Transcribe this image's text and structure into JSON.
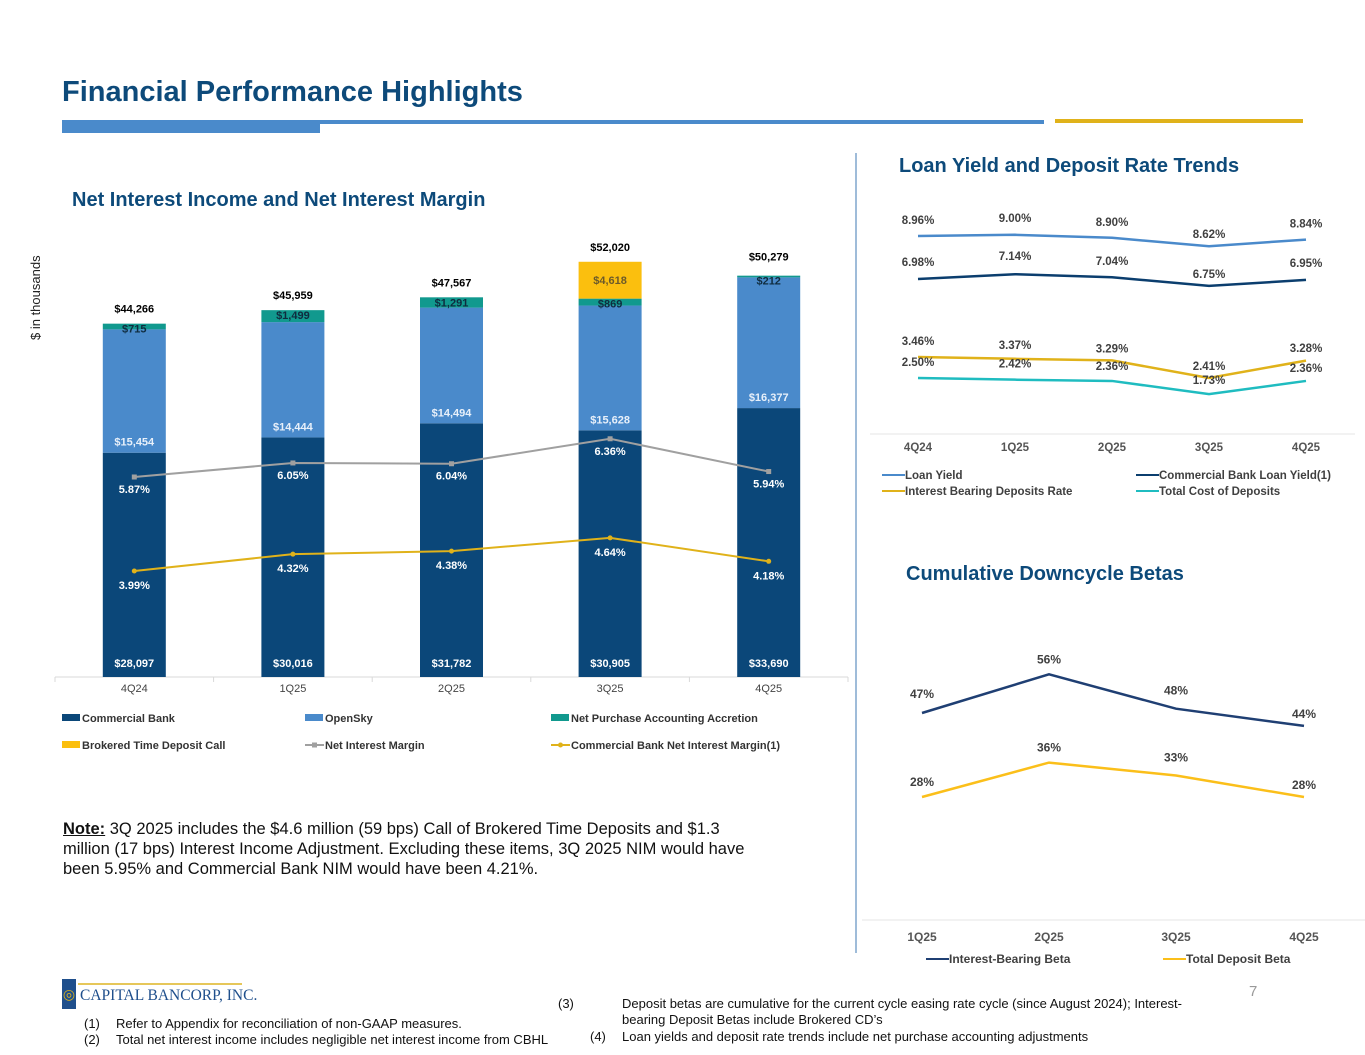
{
  "page": {
    "title": "Financial Performance Highlights",
    "page_number": "7",
    "y_axis_label": "$ in thousands",
    "logo_text": "CAPITAL BANCORP, INC.",
    "note_label": "Note:",
    "note_text": " 3Q 2025 includes the $4.6 million (59 bps) Call of Brokered Time Deposits and $1.3 million (17 bps) Interest Income Adjustment. Excluding these items, 3Q 2025 NIM would have been 5.95% and Commercial Bank NIM would have been 4.21%.",
    "footnotes": [
      {
        "num": "(1)",
        "text": "Refer to Appendix for reconciliation of non-GAAP measures."
      },
      {
        "num": "(2)",
        "text": "Total net interest income includes negligible net interest income from CBHL"
      },
      {
        "num": "(3)",
        "text": "Deposit betas are cumulative for the current cycle easing rate cycle (since August 2024); Interest-bearing Deposit Betas include Brokered CD’s"
      },
      {
        "num": "(4)",
        "text": "Loan yields and deposit rate trends include net purchase accounting adjustments"
      }
    ],
    "colors": {
      "title": "#0d4a7a",
      "commercial_bank": "#0b4779",
      "opensky": "#4a8acb",
      "accretion": "#11998e",
      "brokered": "#fbbf0e",
      "nim": "#a0a0a0",
      "cb_nim": "#e0b21a",
      "loan_yield": "#4a8acb",
      "cb_loan_yield": "#0b3e6e",
      "ib_deposit_rate": "#e0b21a",
      "total_cost_deposits": "#1fbcc0",
      "ib_beta": "#1f3f73",
      "total_beta": "#fbbf1a"
    }
  },
  "chart_data": [
    {
      "id": "nii",
      "type": "bar",
      "stacked": true,
      "title": "Net Interest Income and Net Interest Margin",
      "ylabel": "$ in thousands",
      "categories": [
        "4Q24",
        "1Q25",
        "2Q25",
        "3Q25",
        "4Q25"
      ],
      "ylim": [
        0,
        56000
      ],
      "series": [
        {
          "name": "Commercial Bank",
          "values": [
            28097,
            30016,
            31782,
            30905,
            33690
          ],
          "labels": [
            "$28,097",
            "$30,016",
            "$31,782",
            "$30,905",
            "$33,690"
          ]
        },
        {
          "name": "OpenSky",
          "values": [
            15454,
            14444,
            14494,
            15628,
            16377
          ],
          "labels": [
            "$15,454",
            "$14,444",
            "$14,494",
            "$15,628",
            "$16,377"
          ]
        },
        {
          "name": "Net Purchase Accounting Accretion",
          "values": [
            715,
            1499,
            1291,
            869,
            212
          ],
          "labels": [
            "$715",
            "$1,499",
            "$1,291",
            "$869",
            "$212"
          ]
        },
        {
          "name": "Brokered Time Deposit Call",
          "values": [
            0,
            0,
            0,
            4618,
            0
          ],
          "labels": [
            "",
            "",
            "",
            "$4,618",
            ""
          ]
        }
      ],
      "totals": [
        "$44,266",
        "$45,959",
        "$47,567",
        "$52,020",
        "$50,279"
      ],
      "lines": [
        {
          "name": "Net Interest Margin",
          "values": [
            5.87,
            6.05,
            6.04,
            6.36,
            5.94
          ],
          "labels": [
            "5.87%",
            "6.05%",
            "6.04%",
            "6.36%",
            "5.94%"
          ]
        },
        {
          "name": "Commercial Bank Net Interest Margin(1)",
          "values": [
            3.99,
            4.32,
            4.38,
            4.64,
            4.18
          ],
          "labels": [
            "3.99%",
            "4.32%",
            "4.38%",
            "4.64%",
            "4.18%"
          ]
        }
      ],
      "legend": [
        "Commercial Bank",
        "OpenSky",
        "Net Purchase Accounting Accretion",
        "Brokered Time Deposit Call",
        "Net Interest Margin",
        "Commercial Bank Net Interest Margin(1)"
      ],
      "legend_position": "bottom"
    },
    {
      "id": "loan_yield",
      "type": "line",
      "title": "Loan Yield and Deposit Rate Trends",
      "categories": [
        "4Q24",
        "1Q25",
        "2Q25",
        "3Q25",
        "4Q25"
      ],
      "series": [
        {
          "name": "Loan Yield",
          "values": [
            8.96,
            9.0,
            8.9,
            8.62,
            8.84
          ],
          "labels": [
            "8.96%",
            "9.00%",
            "8.90%",
            "8.62%",
            "8.84%"
          ]
        },
        {
          "name": "Commercial Bank Loan Yield(1)",
          "values": [
            6.98,
            7.14,
            7.04,
            6.75,
            6.95
          ],
          "labels": [
            "6.98%",
            "7.14%",
            "7.04%",
            "6.75%",
            "6.95%"
          ]
        },
        {
          "name": "Interest Bearing Deposits Rate",
          "values": [
            3.46,
            3.37,
            3.29,
            2.41,
            3.28
          ],
          "labels": [
            "3.46%",
            "3.37%",
            "3.29%",
            "2.41%",
            "3.28%"
          ]
        },
        {
          "name": "Total Cost of Deposits",
          "values": [
            2.5,
            2.42,
            2.36,
            1.73,
            2.36
          ],
          "labels": [
            "2.50%",
            "2.42%",
            "2.36%",
            "1.73%",
            "2.36%"
          ]
        }
      ],
      "legend_position": "bottom"
    },
    {
      "id": "betas",
      "type": "line",
      "title": "Cumulative Downcycle Betas",
      "categories": [
        "1Q25",
        "2Q25",
        "3Q25",
        "4Q25"
      ],
      "series": [
        {
          "name": "Interest-Bearing Beta",
          "values": [
            47,
            56,
            48,
            44
          ],
          "labels": [
            "47%",
            "56%",
            "48%",
            "44%"
          ]
        },
        {
          "name": "Total Deposit Beta",
          "values": [
            28,
            36,
            33,
            28
          ],
          "labels": [
            "28%",
            "36%",
            "33%",
            "28%"
          ]
        }
      ],
      "legend_position": "bottom"
    }
  ]
}
